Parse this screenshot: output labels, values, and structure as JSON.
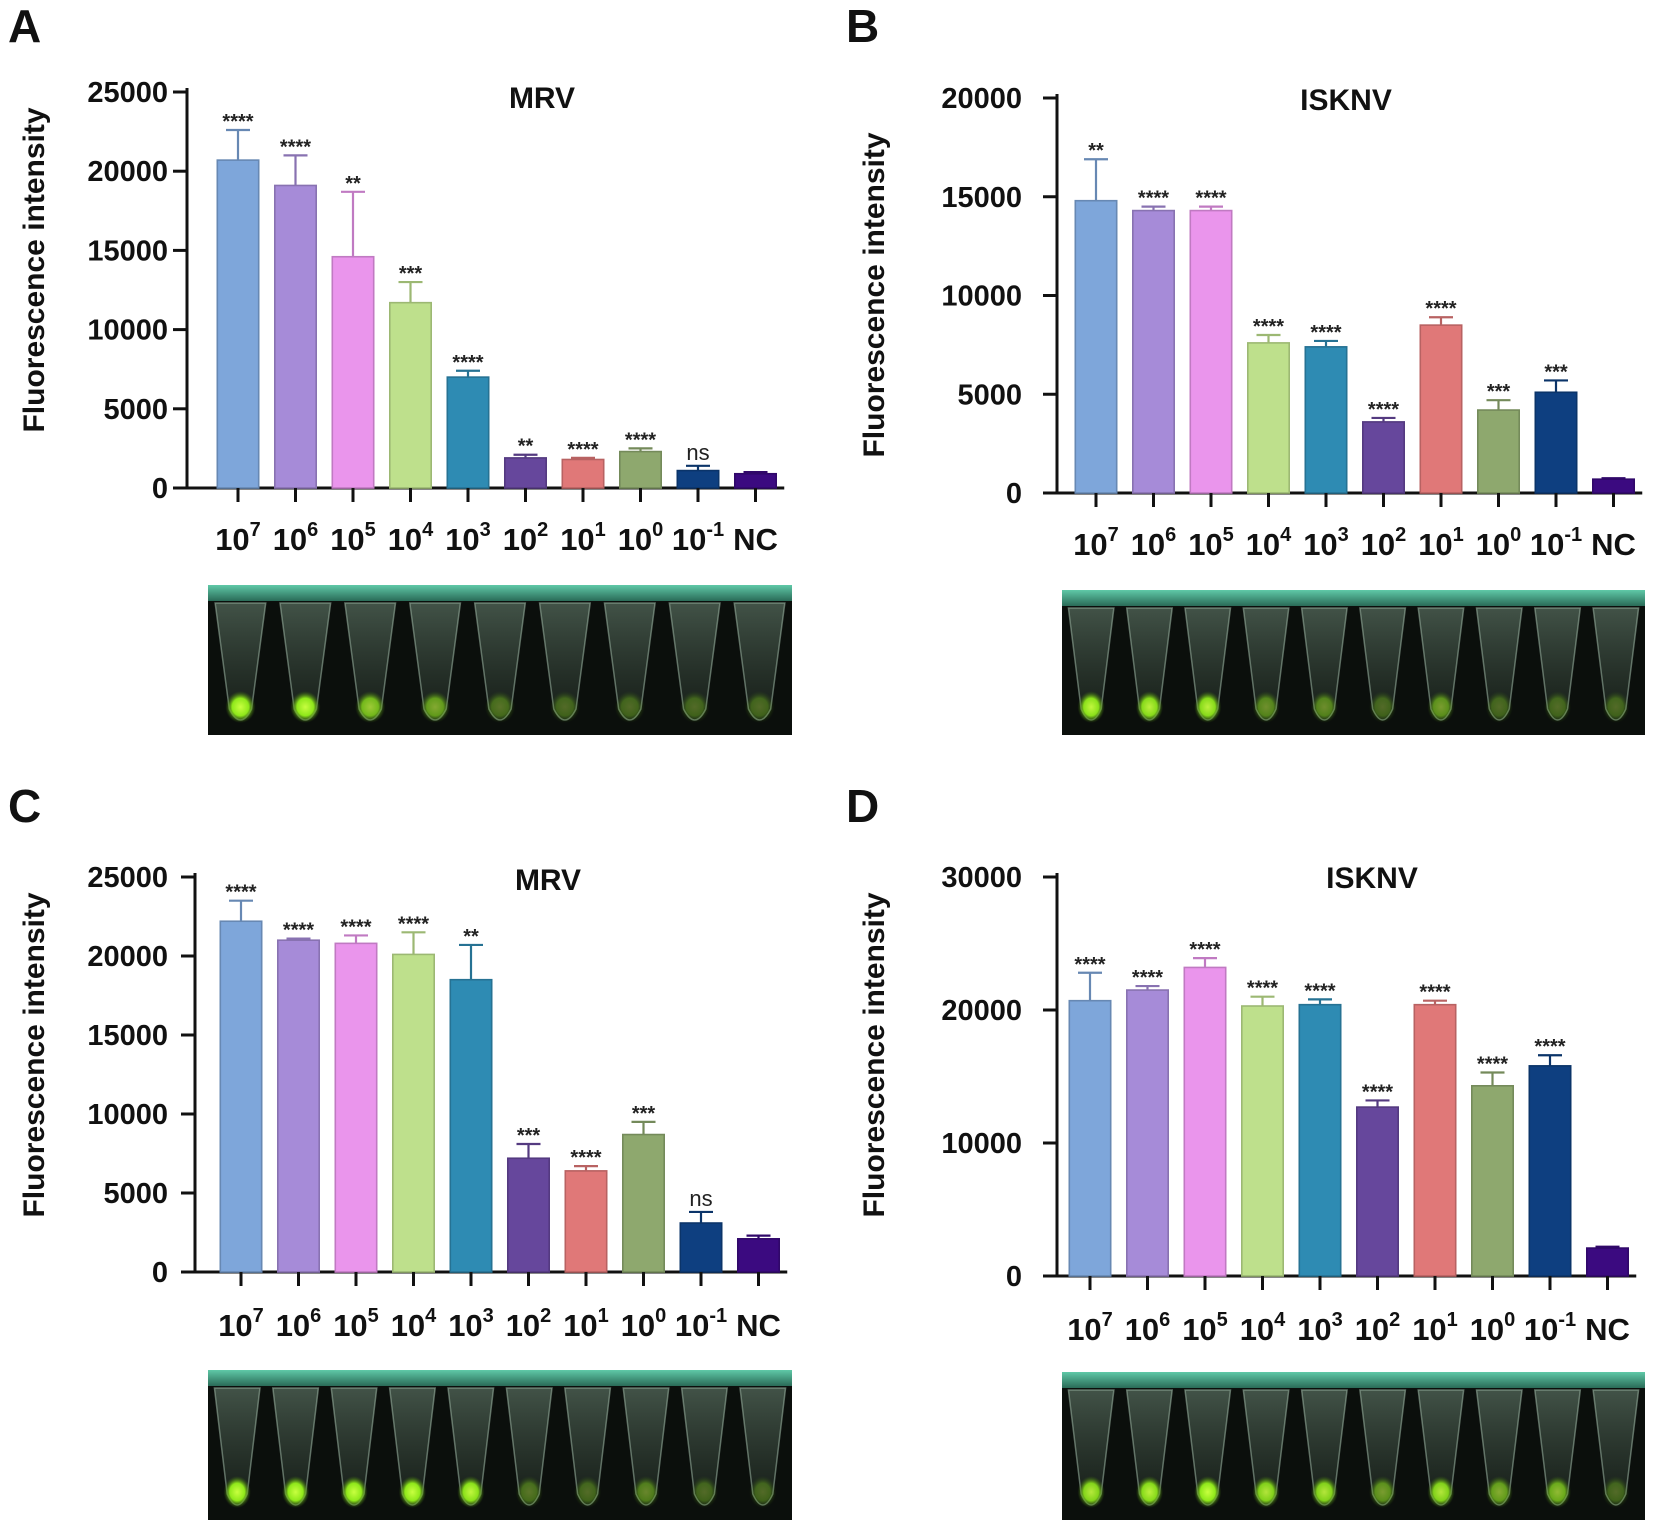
{
  "figure": {
    "colors": [
      "#7EA6DA",
      "#A68BD8",
      "#EA95EC",
      "#BEE08C",
      "#2E8BB3",
      "#66479C",
      "#E07878",
      "#8EA86E",
      "#0E3F80",
      "#3B0A80"
    ]
  },
  "chart_data": [
    {
      "panel": "A",
      "type": "bar",
      "title": "MRV",
      "xlabel": "",
      "ylabel": "Fluorescence intensity",
      "ylim": [
        0,
        25000
      ],
      "yticks": [
        0,
        5000,
        10000,
        15000,
        20000,
        25000
      ],
      "categories": [
        {
          "base": "10",
          "exp": "7"
        },
        {
          "base": "10",
          "exp": "6"
        },
        {
          "base": "10",
          "exp": "5"
        },
        {
          "base": "10",
          "exp": "4"
        },
        {
          "base": "10",
          "exp": "3"
        },
        {
          "base": "10",
          "exp": "2"
        },
        {
          "base": "10",
          "exp": "1"
        },
        {
          "base": "10",
          "exp": "0"
        },
        {
          "base": "10",
          "exp": "-1"
        },
        {
          "base": "NC",
          "exp": ""
        }
      ],
      "values": [
        20700,
        19100,
        14600,
        11700,
        7000,
        1900,
        1800,
        2300,
        1100,
        900
      ],
      "errors": [
        1900,
        1900,
        4100,
        1300,
        400,
        200,
        100,
        200,
        300,
        100
      ],
      "annotations": [
        "****",
        "****",
        "**",
        "***",
        "****",
        "**",
        "****",
        "****",
        "ns",
        ""
      ],
      "photo_tubes": 9
    },
    {
      "panel": "B",
      "type": "bar",
      "title": "ISKNV",
      "xlabel": "",
      "ylabel": "Fluorescence intensity",
      "ylim": [
        0,
        20000
      ],
      "yticks": [
        0,
        5000,
        10000,
        15000,
        20000
      ],
      "categories": [
        {
          "base": "10",
          "exp": "7"
        },
        {
          "base": "10",
          "exp": "6"
        },
        {
          "base": "10",
          "exp": "5"
        },
        {
          "base": "10",
          "exp": "4"
        },
        {
          "base": "10",
          "exp": "3"
        },
        {
          "base": "10",
          "exp": "2"
        },
        {
          "base": "10",
          "exp": "1"
        },
        {
          "base": "10",
          "exp": "0"
        },
        {
          "base": "10",
          "exp": "-1"
        },
        {
          "base": "NC",
          "exp": ""
        }
      ],
      "values": [
        14800,
        14300,
        14300,
        7600,
        7400,
        3600,
        8500,
        4200,
        5100,
        700
      ],
      "errors": [
        2100,
        200,
        200,
        400,
        300,
        200,
        400,
        500,
        600,
        50
      ],
      "annotations": [
        "**",
        "****",
        "****",
        "****",
        "****",
        "****",
        "****",
        "***",
        "***",
        ""
      ],
      "photo_tubes": 10
    },
    {
      "panel": "C",
      "type": "bar",
      "title": "MRV",
      "xlabel": "",
      "ylabel": "Fluorescence intensity",
      "ylim": [
        0,
        25000
      ],
      "yticks": [
        0,
        5000,
        10000,
        15000,
        20000,
        25000
      ],
      "categories": [
        {
          "base": "10",
          "exp": "7"
        },
        {
          "base": "10",
          "exp": "6"
        },
        {
          "base": "10",
          "exp": "5"
        },
        {
          "base": "10",
          "exp": "4"
        },
        {
          "base": "10",
          "exp": "3"
        },
        {
          "base": "10",
          "exp": "2"
        },
        {
          "base": "10",
          "exp": "1"
        },
        {
          "base": "10",
          "exp": "0"
        },
        {
          "base": "10",
          "exp": "-1"
        },
        {
          "base": "NC",
          "exp": ""
        }
      ],
      "values": [
        22200,
        21000,
        20800,
        20100,
        18500,
        7200,
        6400,
        8700,
        3100,
        2100
      ],
      "errors": [
        1300,
        100,
        500,
        1400,
        2200,
        900,
        300,
        800,
        700,
        200
      ],
      "annotations": [
        "****",
        "****",
        "****",
        "****",
        "**",
        "***",
        "****",
        "***",
        "ns",
        ""
      ],
      "photo_tubes": 10
    },
    {
      "panel": "D",
      "type": "bar",
      "title": "ISKNV",
      "xlabel": "",
      "ylabel": "Fluorescence intensity",
      "ylim": [
        0,
        30000
      ],
      "yticks": [
        0,
        10000,
        20000,
        30000
      ],
      "categories": [
        {
          "base": "10",
          "exp": "7"
        },
        {
          "base": "10",
          "exp": "6"
        },
        {
          "base": "10",
          "exp": "5"
        },
        {
          "base": "10",
          "exp": "4"
        },
        {
          "base": "10",
          "exp": "3"
        },
        {
          "base": "10",
          "exp": "2"
        },
        {
          "base": "10",
          "exp": "1"
        },
        {
          "base": "10",
          "exp": "0"
        },
        {
          "base": "10",
          "exp": "-1"
        },
        {
          "base": "NC",
          "exp": ""
        }
      ],
      "values": [
        20700,
        21500,
        23200,
        20300,
        20400,
        12700,
        20400,
        14300,
        15800,
        2100
      ],
      "errors": [
        2100,
        300,
        700,
        700,
        400,
        500,
        300,
        1000,
        800,
        100
      ],
      "annotations": [
        "****",
        "****",
        "****",
        "****",
        "****",
        "****",
        "****",
        "****",
        "****",
        ""
      ],
      "photo_tubes": 10
    }
  ]
}
